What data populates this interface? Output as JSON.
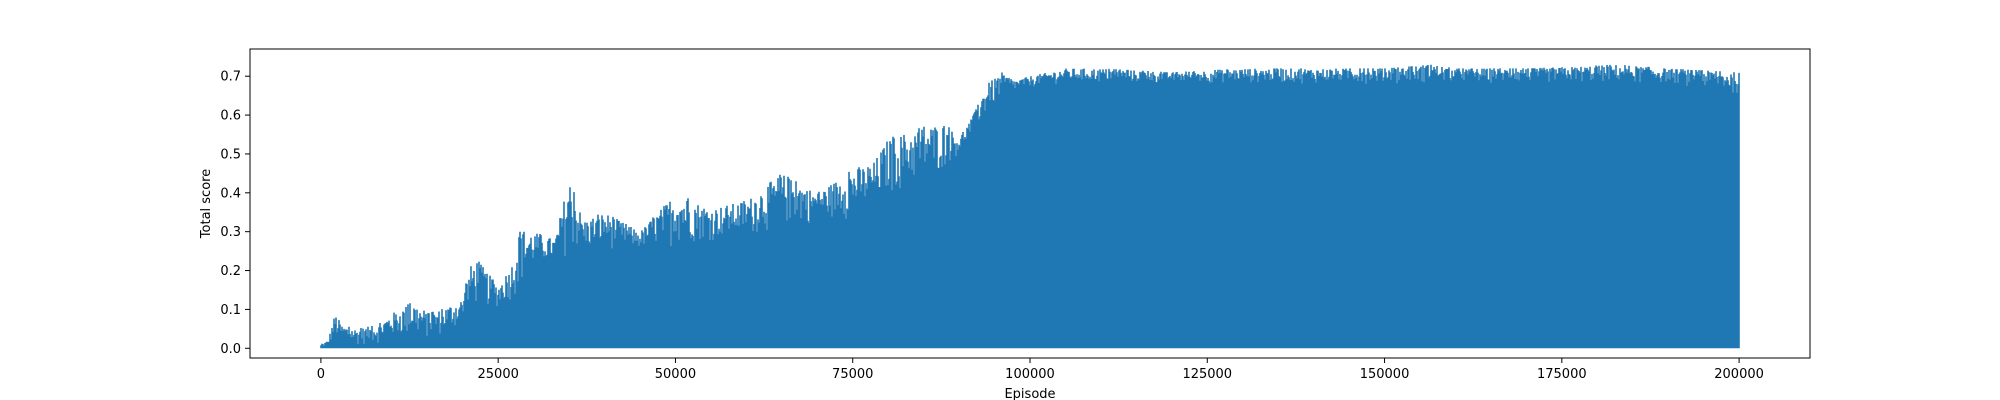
{
  "chart_data": {
    "type": "line",
    "title": "",
    "xlabel": "Episode",
    "ylabel": "Total score",
    "xlim": [
      -10000,
      210000
    ],
    "ylim": [
      -0.025,
      0.77
    ],
    "x_ticks": [
      0,
      25000,
      50000,
      75000,
      100000,
      125000,
      150000,
      175000,
      200000
    ],
    "x_tick_labels": [
      "0",
      "25000",
      "50000",
      "75000",
      "100000",
      "125000",
      "150000",
      "175000",
      "200000"
    ],
    "y_ticks": [
      0.0,
      0.1,
      0.2,
      0.3,
      0.4,
      0.5,
      0.6,
      0.7
    ],
    "y_tick_labels": [
      "0.0",
      "0.1",
      "0.2",
      "0.3",
      "0.4",
      "0.5",
      "0.6",
      "0.7"
    ],
    "grid": false,
    "legend": null,
    "colors": {
      "series": "#1f77b4",
      "axes": "#000000",
      "background": "#ffffff"
    },
    "series": [
      {
        "x_range": [
          0,
          200000
        ],
        "envelope_x": [
          0,
          1000,
          2000,
          3000,
          5000,
          8000,
          10000,
          13000,
          15000,
          17000,
          20000,
          21000,
          22000,
          25000,
          27000,
          28000,
          30000,
          33000,
          35000,
          37000,
          40000,
          45000,
          50000,
          55000,
          60000,
          65000,
          70000,
          75000,
          78000,
          80000,
          85000,
          88000,
          90000,
          92000,
          94000,
          96000,
          98000,
          100000,
          105000,
          110000,
          120000,
          130000,
          140000,
          150000,
          157000,
          160000,
          170000,
          183000,
          190000,
          200000
        ],
        "envelope_max": [
          0.01,
          0.02,
          0.09,
          0.06,
          0.05,
          0.06,
          0.09,
          0.12,
          0.09,
          0.1,
          0.13,
          0.21,
          0.23,
          0.16,
          0.22,
          0.3,
          0.3,
          0.28,
          0.44,
          0.33,
          0.35,
          0.3,
          0.4,
          0.36,
          0.38,
          0.45,
          0.4,
          0.46,
          0.48,
          0.54,
          0.57,
          0.58,
          0.54,
          0.6,
          0.68,
          0.71,
          0.69,
          0.7,
          0.72,
          0.72,
          0.71,
          0.72,
          0.72,
          0.72,
          0.73,
          0.72,
          0.72,
          0.73,
          0.72,
          0.71
        ],
        "envelope_floor": [
          0.0,
          0.005,
          0.02,
          0.01,
          0.005,
          0.01,
          0.02,
          0.02,
          0.02,
          0.03,
          0.05,
          0.08,
          0.1,
          0.1,
          0.12,
          0.14,
          0.2,
          0.22,
          0.23,
          0.24,
          0.25,
          0.25,
          0.26,
          0.27,
          0.28,
          0.3,
          0.32,
          0.33,
          0.35,
          0.38,
          0.42,
          0.45,
          0.5,
          0.55,
          0.6,
          0.64,
          0.66,
          0.67,
          0.68,
          0.68,
          0.68,
          0.68,
          0.68,
          0.68,
          0.68,
          0.68,
          0.68,
          0.68,
          0.68,
          0.65
        ],
        "min_value": 0.0
      }
    ]
  }
}
